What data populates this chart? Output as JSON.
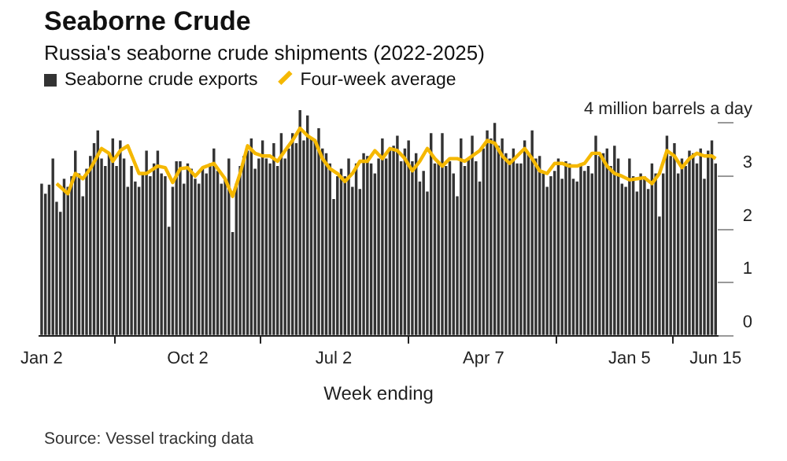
{
  "chart_data": {
    "type": "bar",
    "title": "Seaborne Crude",
    "subtitle": "Russia's seaborne crude shipments (2022-2025)",
    "xlabel": "Week ending",
    "annotations": [
      "Source: Vessel tracking data"
    ],
    "legend": "top left",
    "x": [
      "2022-01-02",
      "2022-01-09",
      "2022-01-16",
      "2022-01-23",
      "2022-01-30",
      "2022-02-06",
      "2022-02-13",
      "2022-02-20",
      "2022-02-27",
      "2022-03-06",
      "2022-03-13",
      "2022-03-20",
      "2022-03-27",
      "2022-04-03",
      "2022-04-10",
      "2022-04-17",
      "2022-04-24",
      "2022-05-01",
      "2022-05-08",
      "2022-05-15",
      "2022-05-22",
      "2022-05-29",
      "2022-06-05",
      "2022-06-12",
      "2022-06-19",
      "2022-06-26",
      "2022-07-03",
      "2022-07-10",
      "2022-07-17",
      "2022-07-24",
      "2022-07-31",
      "2022-08-07",
      "2022-08-14",
      "2022-08-21",
      "2022-08-28",
      "2022-09-04",
      "2022-09-11",
      "2022-09-18",
      "2022-09-25",
      "2022-10-02",
      "2022-10-09",
      "2022-10-16",
      "2022-10-23",
      "2022-10-30",
      "2022-11-06",
      "2022-11-13",
      "2022-11-20",
      "2022-11-27",
      "2022-12-04",
      "2022-12-11",
      "2022-12-18",
      "2022-12-25",
      "2023-01-01",
      "2023-01-08",
      "2023-01-15",
      "2023-01-22",
      "2023-01-29",
      "2023-02-05",
      "2023-02-12",
      "2023-02-19",
      "2023-02-26",
      "2023-03-05",
      "2023-03-12",
      "2023-03-19",
      "2023-03-26",
      "2023-04-02",
      "2023-04-09",
      "2023-04-16",
      "2023-04-23",
      "2023-04-30",
      "2023-05-07",
      "2023-05-14",
      "2023-05-21",
      "2023-05-28",
      "2023-06-04",
      "2023-06-11",
      "2023-06-18",
      "2023-06-25",
      "2023-07-02",
      "2023-07-09",
      "2023-07-16",
      "2023-07-23",
      "2023-07-30",
      "2023-08-06",
      "2023-08-13",
      "2023-08-20",
      "2023-08-27",
      "2023-09-03",
      "2023-09-10",
      "2023-09-17",
      "2023-09-24",
      "2023-10-01",
      "2023-10-08",
      "2023-10-15",
      "2023-10-22",
      "2023-10-29",
      "2023-11-05",
      "2023-11-12",
      "2023-11-19",
      "2023-11-26",
      "2023-12-03",
      "2023-12-10",
      "2023-12-17",
      "2023-12-24",
      "2023-12-31",
      "2024-01-07",
      "2024-01-14",
      "2024-01-21",
      "2024-01-28",
      "2024-02-04",
      "2024-02-11",
      "2024-02-18",
      "2024-02-25",
      "2024-03-03",
      "2024-03-10",
      "2024-03-17",
      "2024-03-24",
      "2024-03-31",
      "2024-04-07",
      "2024-04-14",
      "2024-04-21",
      "2024-04-28",
      "2024-05-05",
      "2024-05-12",
      "2024-05-19",
      "2024-05-26",
      "2024-06-02",
      "2024-06-09",
      "2024-06-16",
      "2024-06-23",
      "2024-06-30",
      "2024-07-07",
      "2024-07-14",
      "2024-07-21",
      "2024-07-28",
      "2024-08-04",
      "2024-08-11",
      "2024-08-18",
      "2024-08-25",
      "2024-09-01",
      "2024-09-08",
      "2024-09-15",
      "2024-09-22",
      "2024-09-29",
      "2024-10-06",
      "2024-10-13",
      "2024-10-20",
      "2024-10-27",
      "2024-11-03",
      "2024-11-10",
      "2024-11-17",
      "2024-11-24",
      "2024-12-01",
      "2024-12-08",
      "2024-12-15",
      "2024-12-22",
      "2024-12-29",
      "2025-01-05",
      "2025-01-12",
      "2025-01-19",
      "2025-01-26",
      "2025-02-02",
      "2025-02-09",
      "2025-02-16",
      "2025-02-23",
      "2025-03-02",
      "2025-03-09",
      "2025-03-16",
      "2025-03-23",
      "2025-03-30",
      "2025-04-06",
      "2025-04-13",
      "2025-04-20",
      "2025-04-27",
      "2025-05-04",
      "2025-05-11",
      "2025-05-18",
      "2025-05-25",
      "2025-06-01",
      "2025-06-08",
      "2025-06-15"
    ],
    "series": [
      {
        "name": "Seaborne crude exports",
        "color": "#333333",
        "values": [
          2.86,
          2.67,
          2.84,
          3.33,
          2.52,
          2.33,
          2.95,
          2.8,
          3.0,
          3.48,
          3.05,
          2.62,
          3.14,
          3.38,
          3.62,
          3.86,
          3.33,
          3.19,
          3.43,
          3.71,
          3.19,
          3.67,
          3.33,
          2.8,
          3.19,
          2.9,
          2.8,
          3.05,
          3.48,
          3.0,
          3.24,
          3.48,
          3.05,
          3.0,
          2.05,
          2.8,
          3.28,
          3.28,
          2.86,
          3.24,
          3.14,
          2.95,
          2.86,
          3.14,
          3.05,
          3.24,
          3.52,
          3.1,
          2.86,
          2.95,
          3.33,
          1.95,
          2.86,
          3.19,
          3.38,
          3.48,
          3.71,
          3.14,
          3.33,
          3.67,
          3.33,
          3.24,
          3.62,
          3.19,
          3.81,
          3.33,
          3.52,
          3.81,
          3.62,
          4.24,
          3.67,
          4.14,
          3.71,
          3.67,
          3.9,
          3.52,
          3.43,
          3.24,
          2.57,
          3.0,
          3.14,
          3.0,
          3.33,
          2.8,
          3.24,
          2.76,
          3.43,
          3.38,
          3.24,
          3.05,
          3.33,
          3.71,
          3.33,
          3.52,
          3.57,
          3.76,
          3.28,
          3.52,
          3.67,
          3.28,
          3.43,
          2.9,
          3.1,
          2.71,
          3.81,
          3.24,
          3.28,
          3.81,
          3.19,
          3.28,
          3.05,
          2.62,
          3.71,
          3.19,
          3.33,
          3.76,
          3.28,
          2.9,
          3.52,
          3.86,
          3.71,
          4.0,
          3.57,
          3.71,
          3.43,
          3.33,
          3.52,
          3.24,
          3.24,
          3.67,
          3.43,
          3.86,
          3.33,
          3.38,
          3.05,
          2.8,
          3.0,
          3.1,
          3.33,
          2.95,
          3.28,
          3.24,
          2.95,
          2.9,
          3.24,
          3.1,
          3.19,
          3.05,
          3.76,
          3.38,
          3.43,
          3.52,
          3.19,
          3.57,
          3.33,
          2.86,
          2.8,
          3.33,
          3.0,
          2.71,
          3.05,
          3.0,
          2.76,
          3.24,
          3.05,
          2.24,
          3.05,
          3.76,
          3.38,
          3.62,
          3.05,
          3.33,
          3.19,
          3.48,
          3.43,
          3.24,
          3.52,
          2.95,
          3.48,
          3.67,
          3.24
        ]
      },
      {
        "name": "Four-week average",
        "type": "line",
        "color": "#f5b800",
        "x": [
          "2022-01-30",
          "2022-02-20",
          "2022-03-06",
          "2022-03-20",
          "2022-04-03",
          "2022-04-24",
          "2022-05-08",
          "2022-05-15",
          "2022-05-29",
          "2022-06-12",
          "2022-07-03",
          "2022-07-17",
          "2022-08-07",
          "2022-08-21",
          "2022-09-04",
          "2022-09-18",
          "2022-10-02",
          "2022-10-16",
          "2022-10-30",
          "2022-11-20",
          "2022-12-11",
          "2022-12-25",
          "2023-01-08",
          "2023-01-22",
          "2023-02-05",
          "2023-02-19",
          "2023-03-05",
          "2023-03-19",
          "2023-04-02",
          "2023-04-16",
          "2023-04-30",
          "2023-05-14",
          "2023-05-28",
          "2023-06-11",
          "2023-06-25",
          "2023-07-09",
          "2023-07-23",
          "2023-08-06",
          "2023-08-20",
          "2023-09-03",
          "2023-09-17",
          "2023-10-01",
          "2023-10-15",
          "2023-10-29",
          "2023-11-12",
          "2023-11-26",
          "2023-12-10",
          "2023-12-24",
          "2024-01-07",
          "2024-01-21",
          "2024-02-04",
          "2024-02-18",
          "2024-03-03",
          "2024-03-17",
          "2024-03-31",
          "2024-04-14",
          "2024-04-28",
          "2024-05-12",
          "2024-05-26",
          "2024-06-09",
          "2024-06-23",
          "2024-07-07",
          "2024-07-21",
          "2024-08-04",
          "2024-08-18",
          "2024-09-01",
          "2024-09-15",
          "2024-09-29",
          "2024-10-13",
          "2024-10-27",
          "2024-11-10",
          "2024-11-24",
          "2024-12-08",
          "2024-12-22",
          "2025-01-05",
          "2025-01-19",
          "2025-02-02",
          "2025-02-16",
          "2025-03-02",
          "2025-03-16",
          "2025-03-30",
          "2025-04-13",
          "2025-04-27",
          "2025-05-11",
          "2025-05-25",
          "2025-06-08",
          "2025-06-15"
        ],
        "values": [
          2.86,
          2.67,
          3.05,
          2.95,
          3.14,
          3.52,
          3.43,
          3.28,
          3.48,
          3.57,
          3.05,
          3.05,
          3.19,
          3.16,
          2.88,
          3.14,
          3.16,
          3.0,
          3.16,
          3.24,
          2.95,
          2.62,
          3.05,
          3.57,
          3.43,
          3.38,
          3.38,
          3.28,
          3.48,
          3.67,
          3.9,
          3.76,
          3.67,
          3.33,
          3.14,
          3.05,
          2.9,
          3.05,
          3.28,
          3.28,
          3.48,
          3.33,
          3.52,
          3.48,
          3.33,
          3.1,
          3.28,
          3.52,
          3.33,
          3.19,
          3.33,
          3.33,
          3.28,
          3.38,
          3.48,
          3.67,
          3.62,
          3.38,
          3.24,
          3.38,
          3.52,
          3.33,
          3.1,
          3.05,
          3.24,
          3.24,
          3.19,
          3.19,
          3.24,
          3.43,
          3.43,
          3.19,
          3.05,
          3.0,
          2.93,
          2.95,
          2.97,
          2.86,
          3.05,
          3.48,
          3.38,
          3.16,
          3.33,
          3.43,
          3.38,
          3.38,
          3.33
        ]
      }
    ],
    "xlim": [
      "2021-12-29",
      "2025-06-19"
    ],
    "xticks": [
      {
        "value": "2022-01-02",
        "label": "Jan 2"
      },
      {
        "value": "2022-10-02",
        "label": "Oct 2"
      },
      {
        "value": "2023-07-02",
        "label": "Jul 2"
      },
      {
        "value": "2024-04-07",
        "label": "Apr 7"
      },
      {
        "value": "2025-01-05",
        "label": "Jan 5"
      },
      {
        "value": "2025-06-15",
        "label": "Jun 15"
      }
    ],
    "ylim": [
      0,
      4.3
    ],
    "yticks": [
      0,
      1,
      2,
      3,
      {
        "value": 4,
        "label": "4 million barrels a day"
      }
    ]
  }
}
